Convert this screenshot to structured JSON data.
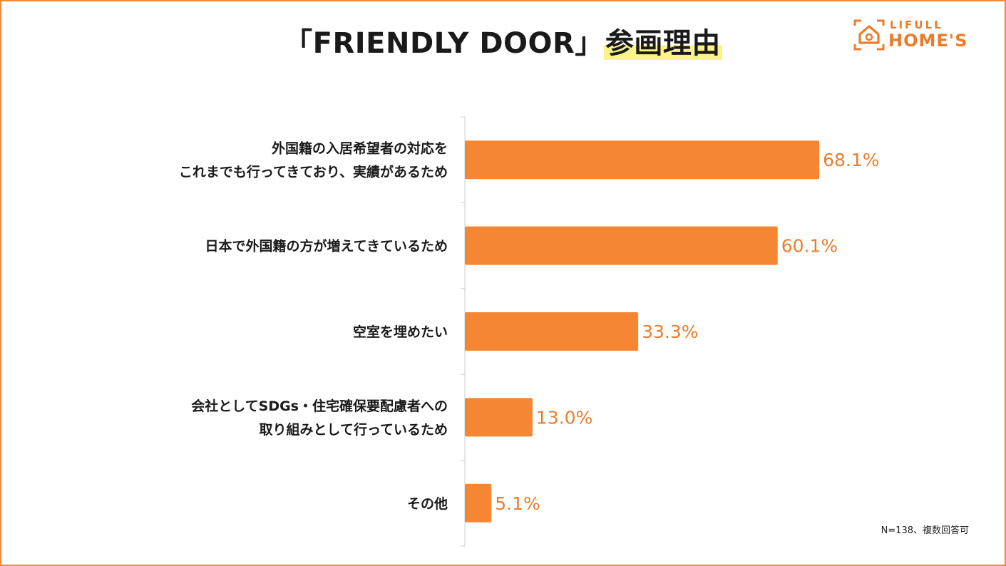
{
  "header": {
    "title_main": "「FRIENDLY DOOR」",
    "title_highlight": "参画理由"
  },
  "logo": {
    "line1": "LIFULL",
    "line2": "HOME'S"
  },
  "note": "N=138、複数回答可",
  "colors": {
    "bar": "#f58634",
    "value_text": "#ec7c2c",
    "frame": "#f08a3c",
    "highlight": "#fbf28a"
  },
  "chart_data": {
    "type": "bar",
    "orientation": "horizontal",
    "categories": [
      [
        "外国籍の入居希望者の対応を",
        "これまでも行ってきており、実績があるため"
      ],
      [
        "日本で外国籍の方が増えてきているため"
      ],
      [
        "空室を埋めたい"
      ],
      [
        "会社としてSDGs・住宅確保要配慮者への",
        "取り組みとして行っているため"
      ],
      [
        "その他"
      ]
    ],
    "values": [
      68.1,
      60.1,
      33.3,
      13.0,
      5.1
    ],
    "value_labels": [
      "68.1%",
      "60.1%",
      "33.3%",
      "13.0%",
      "5.1%"
    ],
    "unit": "%",
    "xlim": [
      0,
      100
    ]
  }
}
